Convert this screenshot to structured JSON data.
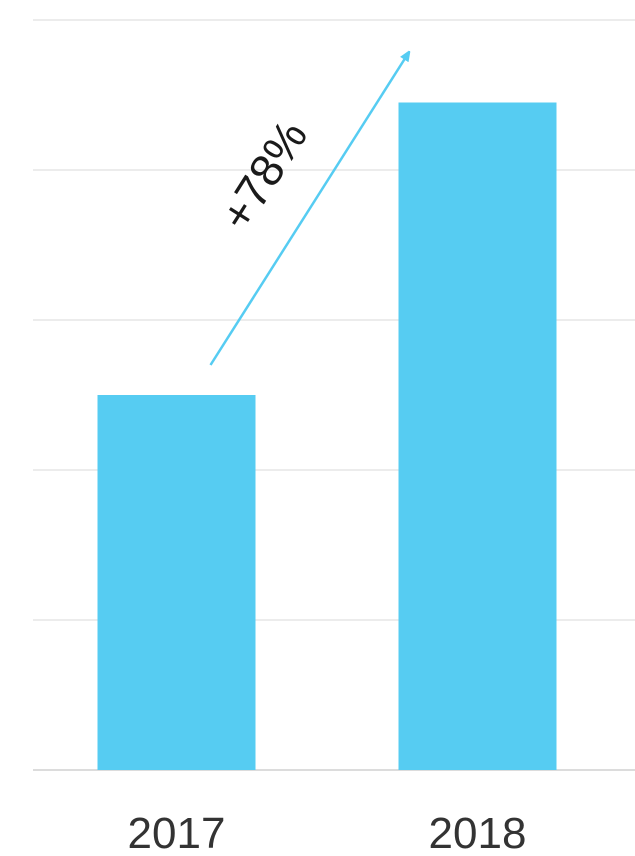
{
  "chart_data": {
    "type": "bar",
    "categories": [
      "2017",
      "2018"
    ],
    "values": [
      100,
      178
    ],
    "ylim": [
      0,
      200
    ],
    "grid": true,
    "bar_color": "#56ccf2",
    "annotation": {
      "text": "+78%",
      "color": "#56ccf2",
      "from": "2017",
      "to": "2018"
    }
  }
}
